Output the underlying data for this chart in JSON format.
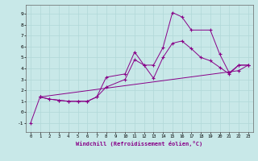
{
  "title": "",
  "xlabel": "Windchill (Refroidissement éolien,°C)",
  "bg_color": "#c8e8e8",
  "line_color": "#880088",
  "xlim": [
    -0.5,
    23.5
  ],
  "ylim": [
    -1.8,
    9.8
  ],
  "xticks": [
    0,
    1,
    2,
    3,
    4,
    5,
    6,
    7,
    8,
    9,
    10,
    11,
    12,
    13,
    14,
    15,
    16,
    17,
    18,
    19,
    20,
    21,
    22,
    23
  ],
  "yticks": [
    -1,
    0,
    1,
    2,
    3,
    4,
    5,
    6,
    7,
    8,
    9
  ],
  "series": [
    {
      "x": [
        0,
        1,
        2,
        3,
        4,
        5,
        6,
        7,
        8,
        10,
        11,
        12,
        13,
        14,
        15,
        16,
        17,
        19,
        20,
        21,
        22,
        23
      ],
      "y": [
        -1,
        1.4,
        1.2,
        1.1,
        1.0,
        1.0,
        1.0,
        1.4,
        3.2,
        3.5,
        5.5,
        4.3,
        4.3,
        5.9,
        9.1,
        8.7,
        7.5,
        7.5,
        5.3,
        3.6,
        4.3,
        4.3
      ]
    },
    {
      "x": [
        1,
        2,
        3,
        4,
        5,
        6,
        7,
        8,
        10,
        11,
        12,
        13,
        14,
        15,
        16,
        17,
        18,
        19,
        20,
        21,
        22,
        23
      ],
      "y": [
        1.4,
        1.2,
        1.1,
        1.0,
        1.0,
        1.0,
        1.4,
        2.3,
        3.0,
        4.8,
        4.3,
        3.1,
        5.0,
        6.3,
        6.5,
        5.8,
        5.0,
        4.7,
        4.1,
        3.5,
        4.3,
        4.3
      ]
    },
    {
      "x": [
        1,
        22,
        23
      ],
      "y": [
        1.4,
        3.8,
        4.3
      ]
    }
  ]
}
